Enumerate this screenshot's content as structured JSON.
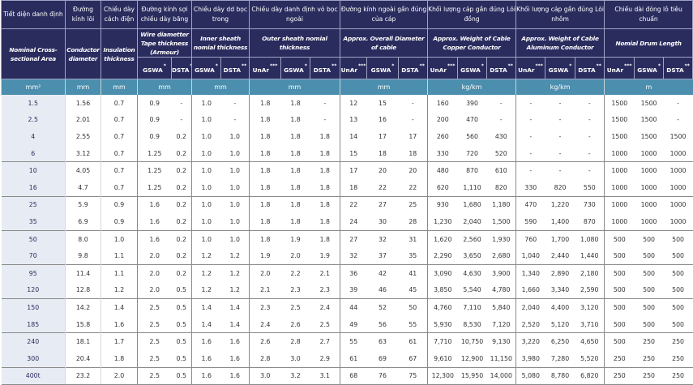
{
  "header": {
    "groups": [
      {
        "vi": "Tiết diện danh định",
        "en": "Nominal Cross- sectional Area",
        "unit": "mm²",
        "subs": []
      },
      {
        "vi": "Đường kính lõi",
        "en": "Conductor diameter",
        "unit": "mm",
        "subs": []
      },
      {
        "vi": "Chiều dày cách điện",
        "en": "Insulation thickness",
        "unit": "mm",
        "subs": []
      },
      {
        "vi": "Đường kính sợi chiều dày băng",
        "en": "Wire diametter Tape thickness (Armour)",
        "unit": "mm",
        "subs": [
          {
            "label": "GSWA",
            "mark": "*"
          },
          {
            "label": "DSTA",
            "mark": "**"
          }
        ]
      },
      {
        "vi": "Chiều dày dd bọc trong",
        "en": "Inner sheath nomial thickness",
        "unit": "mm",
        "subs": [
          {
            "label": "GSWA",
            "mark": "*"
          },
          {
            "label": "DSTA",
            "mark": "**"
          }
        ]
      },
      {
        "vi": "Chiều dày danh định vỏ bọc ngoài",
        "en": "Outer sheath nomial thickness",
        "unit": "mm",
        "subs": [
          {
            "label": "UnAr",
            "mark": "***"
          },
          {
            "label": "GSWA",
            "mark": "*"
          },
          {
            "label": "DSTA",
            "mark": "**"
          }
        ]
      },
      {
        "vi": "Đường kính ngoài gần đúng của cáp",
        "en": "Approx. Overall Diameter of cable",
        "unit": "mm",
        "subs": [
          {
            "label": "UnAr",
            "mark": "***"
          },
          {
            "label": "GSWA",
            "mark": "*"
          },
          {
            "label": "DSTA",
            "mark": "**"
          }
        ]
      },
      {
        "vi": "Khối lượng cáp gần đúng Lõi đồng",
        "en": "Approx. Weight of Cable Copper Conductor",
        "unit": "kg/km",
        "subs": [
          {
            "label": "UnAr",
            "mark": "***"
          },
          {
            "label": "GSWA",
            "mark": "*"
          },
          {
            "label": "DSTA",
            "mark": "**"
          }
        ]
      },
      {
        "vi": "Khối lượng cáp gần đúng Lõi nhôm",
        "en": "Approx. Weight of Cable Aluminum Conductor",
        "unit": "kg/km",
        "subs": [
          {
            "label": "UnAr",
            "mark": "***"
          },
          {
            "label": "GSWA",
            "mark": "*"
          },
          {
            "label": "DSTA",
            "mark": "**"
          }
        ]
      },
      {
        "vi": "Chiều dài đóng lô tiêu chuẩn",
        "en": "Nomial Drum Length",
        "unit": "m",
        "subs": [
          {
            "label": "UnAr",
            "mark": "***"
          },
          {
            "label": "GSWA",
            "mark": "*"
          },
          {
            "label": "DSTA",
            "mark": "**"
          }
        ]
      }
    ]
  },
  "rows": [
    [
      "1.5",
      "1.56",
      "0.7",
      "0.9",
      "-",
      "1.0",
      "-",
      "1.8",
      "1.8",
      "-",
      "12",
      "15",
      "-",
      "160",
      "390",
      "-",
      "-",
      "-",
      "-",
      "1500",
      "1500",
      "-"
    ],
    [
      "2.5",
      "2.01",
      "0.7",
      "0.9",
      "-",
      "1.0",
      "-",
      "1.8",
      "1.8",
      "-",
      "13",
      "16",
      "-",
      "200",
      "470",
      "-",
      "-",
      "-",
      "-",
      "1500",
      "1500",
      "-"
    ],
    [
      "4",
      "2.55",
      "0.7",
      "0.9",
      "0.2",
      "1.0",
      "1.0",
      "1.8",
      "1.8",
      "1.8",
      "14",
      "17",
      "17",
      "260",
      "560",
      "430",
      "-",
      "-",
      "-",
      "1500",
      "1500",
      "1500"
    ],
    [
      "6",
      "3.12",
      "0.7",
      "1.25",
      "0.2",
      "1.0",
      "1.0",
      "1.8",
      "1.8",
      "1.8",
      "15",
      "18",
      "18",
      "330",
      "720",
      "520",
      "-",
      "-",
      "-",
      "1000",
      "1000",
      "1000"
    ],
    [
      "10",
      "4.05",
      "0.7",
      "1.25",
      "0.2",
      "1.0",
      "1.0",
      "1.8",
      "1.8",
      "1.8",
      "17",
      "20",
      "20",
      "480",
      "870",
      "610",
      "-",
      "-",
      "-",
      "1000",
      "1000",
      "1000"
    ],
    [
      "16",
      "4.7",
      "0.7",
      "1.25",
      "0.2",
      "1.0",
      "1.0",
      "1.8",
      "1.8",
      "1.8",
      "18",
      "22",
      "22",
      "620",
      "1,110",
      "820",
      "330",
      "820",
      "550",
      "1000",
      "1000",
      "1000"
    ],
    [
      "25",
      "5.9",
      "0.9",
      "1.6",
      "0.2",
      "1.0",
      "1.0",
      "1.8",
      "1.8",
      "1.8",
      "22",
      "27",
      "25",
      "930",
      "1,680",
      "1,180",
      "470",
      "1,220",
      "730",
      "1000",
      "1000",
      "1000"
    ],
    [
      "35",
      "6.9",
      "0.9",
      "1.6",
      "0.2",
      "1.0",
      "1.0",
      "1.8",
      "1.8",
      "1.8",
      "24",
      "30",
      "28",
      "1,230",
      "2,040",
      "1,500",
      "590",
      "1,400",
      "870",
      "1000",
      "1000",
      "1000"
    ],
    [
      "50",
      "8.0",
      "1.0",
      "1.6",
      "0.2",
      "1.0",
      "1.0",
      "1.8",
      "1.9",
      "1.8",
      "27",
      "32",
      "31",
      "1,620",
      "2,560",
      "1,930",
      "760",
      "1,700",
      "1,080",
      "500",
      "500",
      "500"
    ],
    [
      "70",
      "9.8",
      "1.1",
      "2.0",
      "0.2",
      "1.2",
      "1.2",
      "1.9",
      "2.0",
      "1.9",
      "32",
      "37",
      "35",
      "2,290",
      "3,650",
      "2,680",
      "1,040",
      "2,440",
      "1,440",
      "500",
      "500",
      "500"
    ],
    [
      "95",
      "11.4",
      "1.1",
      "2.0",
      "0.2",
      "1.2",
      "1.2",
      "2.0",
      "2.2",
      "2.1",
      "36",
      "42",
      "41",
      "3,090",
      "4,630",
      "3,900",
      "1,340",
      "2,890",
      "2,180",
      "500",
      "500",
      "500"
    ],
    [
      "120",
      "12.8",
      "1.2",
      "2.0",
      "0.5",
      "1.2",
      "1.2",
      "2.1",
      "2.3",
      "2.3",
      "39",
      "46",
      "45",
      "3,850",
      "5,540",
      "4,780",
      "1,660",
      "3,340",
      "2,590",
      "500",
      "500",
      "500"
    ],
    [
      "150",
      "14.2",
      "1.4",
      "2.5",
      "0.5",
      "1.4",
      "1.4",
      "2.3",
      "2.5",
      "2.4",
      "44",
      "52",
      "50",
      "4,760",
      "7,110",
      "5,840",
      "2,040",
      "4,400",
      "3,120",
      "500",
      "500",
      "500"
    ],
    [
      "185",
      "15.8",
      "1.6",
      "2.5",
      "0.5",
      "1.4",
      "1.4",
      "2.4",
      "2.6",
      "2.5",
      "49",
      "56",
      "55",
      "5,930",
      "8,530",
      "7,120",
      "2,520",
      "5,120",
      "3,710",
      "500",
      "500",
      "500"
    ],
    [
      "240",
      "18.1",
      "1.7",
      "2.5",
      "0.5",
      "1.6",
      "1.6",
      "2.6",
      "2.8",
      "2.7",
      "55",
      "63",
      "61",
      "7,710",
      "10,750",
      "9,130",
      "3,220",
      "6,250",
      "4,650",
      "500",
      "250",
      "250"
    ],
    [
      "300",
      "20.4",
      "1.8",
      "2.5",
      "0.5",
      "1.6",
      "1.6",
      "2.8",
      "3.0",
      "2.9",
      "61",
      "69",
      "67",
      "9,610",
      "12,900",
      "11,150",
      "3,980",
      "7,280",
      "5,520",
      "250",
      "250",
      "250"
    ],
    [
      "400t",
      "23.2",
      "2.0",
      "2.5",
      "0.5",
      "1.6",
      "1.6",
      "3.0",
      "3.2",
      "3.1",
      "68",
      "76",
      "75",
      "12,300",
      "15,950",
      "14,000",
      "5,080",
      "8,780",
      "6,820",
      "250",
      "250",
      "250"
    ]
  ],
  "group_starts": [
    0,
    4,
    6,
    8,
    10,
    12,
    14,
    16
  ],
  "colors": {
    "header_bg": "#2a2c5e",
    "unit_bg": "#4b8ead",
    "first_col_bg": "#e7ebf3"
  }
}
